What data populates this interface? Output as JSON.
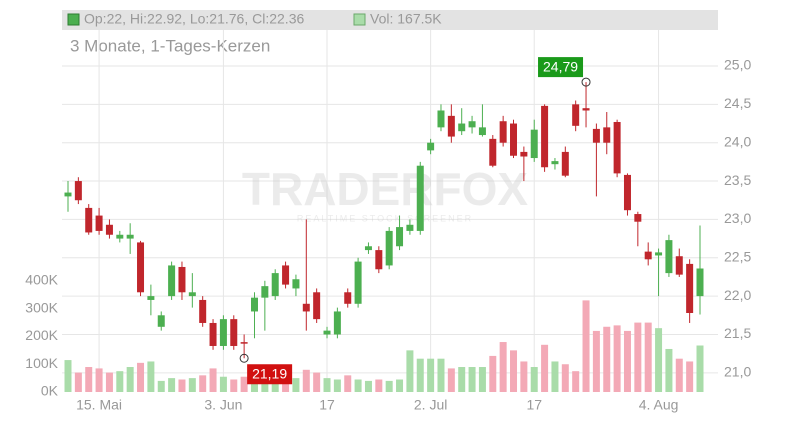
{
  "chart_data": {
    "type": "candlestick",
    "legend": "Op:22, Hi:22.92, Lo:21.76, Cl:22.36",
    "volume_legend": "Vol: 167.5K",
    "subtitle": "3 Monate, 1-Tages-Kerzen",
    "watermark": "TRADERFOX",
    "watermark_sub": "REALTIME STOCK SCREENER",
    "categories": [
      null,
      null,
      null,
      "15. Mai",
      null,
      null,
      null,
      null,
      null,
      null,
      null,
      null,
      null,
      null,
      null,
      "3. Jun",
      null,
      null,
      null,
      null,
      null,
      null,
      null,
      null,
      null,
      "17",
      null,
      null,
      null,
      null,
      null,
      null,
      null,
      null,
      null,
      "2. Jul",
      null,
      null,
      null,
      null,
      null,
      null,
      null,
      null,
      null,
      "17",
      null,
      null,
      null,
      null,
      null,
      null,
      null,
      null,
      null,
      null,
      null,
      "4. Aug",
      null,
      null,
      null,
      null
    ],
    "open": [
      23.3,
      23.5,
      23.15,
      23.05,
      22.93,
      22.75,
      22.75,
      22.7,
      21.95,
      21.6,
      22.0,
      22.38,
      22.0,
      21.95,
      21.65,
      21.35,
      21.7,
      21.4,
      21.8,
      21.98,
      22.0,
      22.4,
      22.1,
      21.9,
      22.05,
      21.5,
      21.5,
      22.05,
      21.9,
      22.6,
      22.6,
      22.4,
      22.65,
      22.85,
      22.85,
      23.9,
      24.2,
      24.35,
      24.15,
      24.2,
      24.1,
      24.05,
      24.28,
      24.25,
      23.88,
      23.8,
      24.48,
      23.72,
      23.88,
      24.5,
      24.45,
      24.18,
      24.2,
      24.27,
      23.58,
      23.07,
      22.58,
      22.53,
      22.3,
      22.52,
      22.42,
      22.0
    ],
    "high": [
      23.5,
      23.55,
      23.2,
      23.15,
      23.0,
      22.85,
      22.95,
      22.72,
      22.15,
      21.8,
      22.45,
      22.45,
      22.3,
      22.0,
      21.7,
      21.75,
      21.75,
      21.5,
      22.05,
      22.2,
      22.35,
      22.45,
      22.28,
      23.0,
      22.1,
      21.6,
      21.85,
      22.1,
      22.5,
      22.7,
      22.65,
      22.9,
      23.05,
      23.0,
      23.75,
      24.05,
      24.5,
      24.5,
      24.45,
      24.35,
      24.5,
      24.1,
      24.35,
      24.3,
      23.95,
      24.3,
      24.5,
      23.8,
      23.95,
      24.55,
      24.79,
      24.25,
      24.4,
      24.3,
      23.6,
      23.1,
      22.7,
      22.62,
      22.8,
      22.62,
      22.48,
      22.92
    ],
    "low": [
      23.1,
      23.2,
      22.8,
      22.8,
      22.75,
      22.7,
      22.55,
      22.0,
      21.75,
      21.55,
      21.95,
      21.95,
      21.85,
      21.6,
      21.3,
      21.3,
      21.3,
      21.19,
      21.45,
      21.55,
      21.95,
      22.1,
      22.0,
      21.55,
      21.65,
      21.45,
      21.45,
      21.85,
      21.85,
      22.55,
      22.3,
      22.35,
      22.6,
      22.8,
      22.8,
      23.85,
      24.15,
      24.0,
      24.1,
      24.12,
      24.08,
      23.68,
      23.95,
      23.8,
      23.5,
      23.75,
      23.62,
      23.65,
      23.55,
      24.15,
      24.2,
      23.3,
      23.85,
      23.55,
      23.05,
      22.65,
      22.4,
      22.0,
      22.25,
      22.25,
      21.65,
      21.76
    ],
    "close": [
      23.35,
      23.25,
      22.83,
      22.85,
      22.8,
      22.8,
      22.8,
      22.05,
      22.0,
      21.75,
      22.4,
      22.05,
      22.05,
      21.65,
      21.35,
      21.7,
      21.35,
      21.38,
      21.98,
      22.13,
      22.3,
      22.15,
      22.22,
      21.8,
      21.7,
      21.55,
      21.8,
      21.9,
      22.45,
      22.65,
      22.35,
      22.85,
      22.9,
      22.93,
      23.7,
      24.0,
      24.42,
      24.08,
      24.25,
      24.28,
      24.2,
      23.7,
      24.0,
      23.83,
      23.82,
      24.17,
      23.68,
      23.76,
      23.57,
      24.22,
      24.42,
      24.0,
      24.0,
      23.6,
      23.12,
      22.97,
      22.48,
      22.57,
      22.73,
      22.28,
      21.78,
      22.36
    ],
    "volume": [
      115000,
      70000,
      90000,
      85000,
      70000,
      75000,
      90000,
      105000,
      110000,
      40000,
      50000,
      45000,
      50000,
      60000,
      85000,
      55000,
      45000,
      55000,
      60000,
      50000,
      50000,
      55000,
      50000,
      80000,
      70000,
      50000,
      45000,
      60000,
      45000,
      40000,
      45000,
      40000,
      45000,
      150000,
      120000,
      120000,
      120000,
      85000,
      90000,
      90000,
      90000,
      130000,
      180000,
      150000,
      110000,
      90000,
      170000,
      110000,
      100000,
      75000,
      330000,
      220000,
      235000,
      240000,
      220000,
      250000,
      250000,
      230000,
      155000,
      120000,
      110000,
      167500
    ],
    "ylim": [
      20.75,
      25.73
    ],
    "yticks": [
      {
        "value": 21,
        "label": "21,0"
      },
      {
        "value": 21.5,
        "label": "21,5"
      },
      {
        "value": 22,
        "label": "22,0"
      },
      {
        "value": 22.5,
        "label": "22,5"
      },
      {
        "value": 23,
        "label": "23,0"
      },
      {
        "value": 23.5,
        "label": "23,5"
      },
      {
        "value": 24,
        "label": "24,0"
      },
      {
        "value": 24.5,
        "label": "24,5"
      },
      {
        "value": 25,
        "label": "25,0"
      }
    ],
    "y2lim": [
      0,
      1376000
    ],
    "y2ticks": [
      {
        "value": 0,
        "label": "0K"
      },
      {
        "value": 100000,
        "label": "100K"
      },
      {
        "value": 200000,
        "label": "200K"
      },
      {
        "value": 300000,
        "label": "300K"
      },
      {
        "value": 400000,
        "label": "400K"
      }
    ],
    "annotations": [
      {
        "label": "24,79",
        "value": 24.79,
        "color": "#1a9a1a"
      },
      {
        "label": "21,19",
        "value": 21.19,
        "color": "#d11010"
      }
    ],
    "up_color": "#4caf50",
    "down_color": "#c0262c",
    "volume_up_color": "#a9dca9",
    "volume_down_color": "#f3a9b6",
    "grid": true
  }
}
